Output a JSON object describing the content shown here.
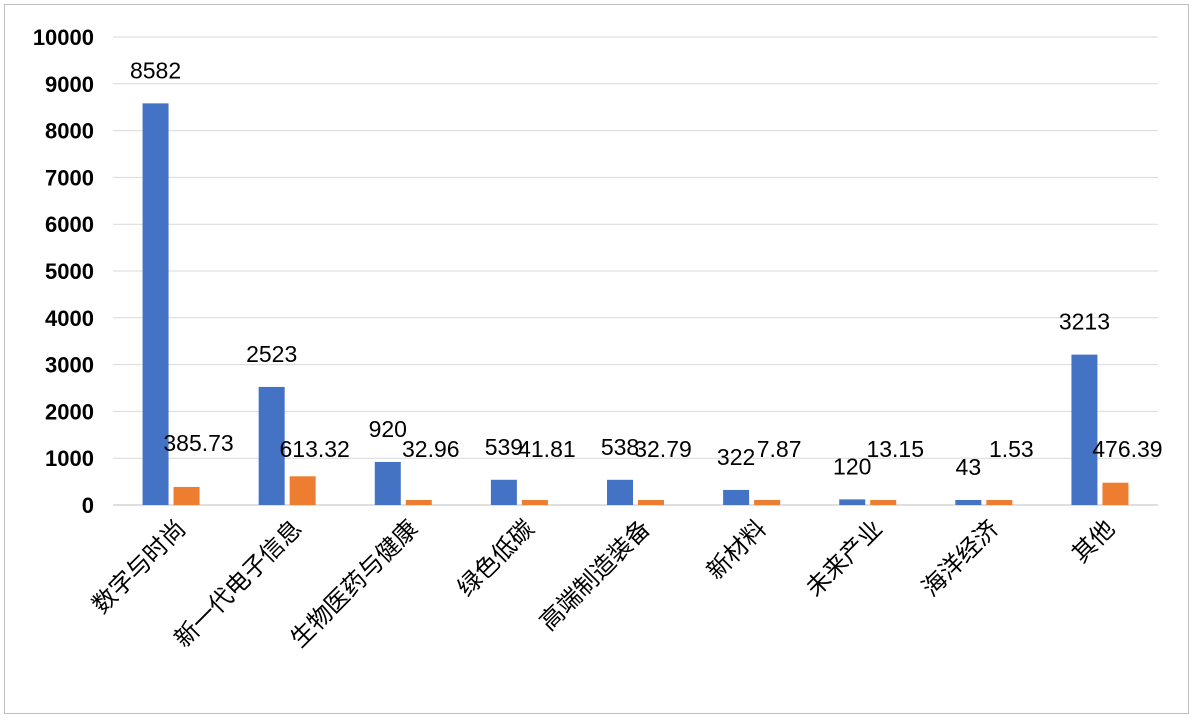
{
  "chart_data": {
    "type": "bar",
    "title": "",
    "xlabel": "",
    "ylabel": "",
    "ylim": [
      0,
      10000
    ],
    "yticks": [
      0,
      1000,
      2000,
      3000,
      4000,
      5000,
      6000,
      7000,
      8000,
      9000,
      10000
    ],
    "grid": true,
    "legend": "none",
    "categories": [
      "数字与时尚",
      "新一代电子信息",
      "生物医药与健康",
      "绿色低碳",
      "高端制造装备",
      "新材料",
      "未来产业",
      "海洋经济",
      "其他"
    ],
    "series": [
      {
        "name": "series1",
        "color": "#4472C4",
        "values": [
          8582,
          2523,
          920,
          539,
          538,
          322,
          120,
          43,
          3213
        ],
        "labels": [
          "8582",
          "2523",
          "920",
          "539",
          "538",
          "322",
          "120",
          "43",
          "3213"
        ]
      },
      {
        "name": "series2",
        "color": "#ED7D31",
        "values": [
          385.73,
          613.32,
          32.96,
          41.81,
          32.79,
          7.87,
          13.15,
          1.53,
          476.39
        ],
        "labels": [
          "385.73",
          "613.32",
          "32.96",
          "41.81",
          "32.79",
          "7.87",
          "13.15",
          "1.53",
          "476.39"
        ]
      }
    ]
  }
}
